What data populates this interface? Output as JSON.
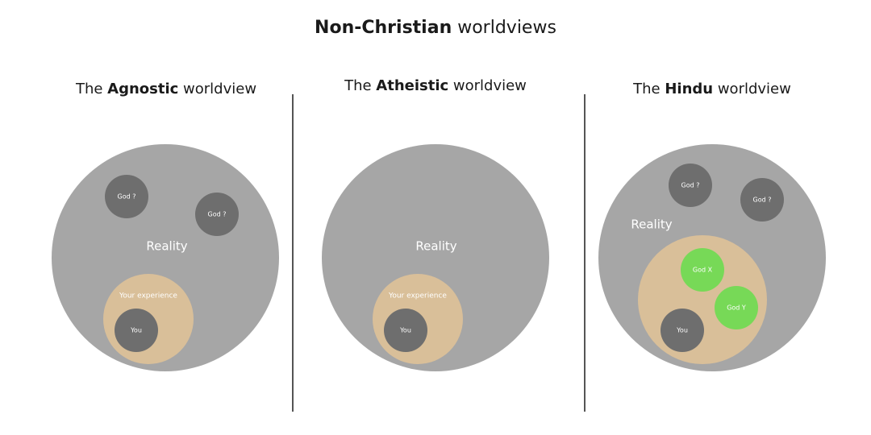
{
  "title": {
    "bold": "Non-Christian",
    "rest": " worldviews"
  },
  "panels": [
    {
      "prefix": "The ",
      "bold": "Agnostic",
      "suffix": " worldview"
    },
    {
      "prefix": "The ",
      "bold": "Atheistic",
      "suffix": " worldview"
    },
    {
      "prefix": "The ",
      "bold": "Hindu",
      "suffix": " worldview"
    }
  ],
  "labels": {
    "reality": "Reality",
    "your_experience": "Your experience",
    "you": "You",
    "god_unknown": "God ?",
    "god_x": "God X",
    "god_y": "God Y"
  },
  "colors": {
    "reality": "#a6a6a6",
    "god_unknown": "#6e6e6e",
    "experience": "#d9bf99",
    "you": "#6e6e6e",
    "god_named": "#77d957",
    "divider": "#555555"
  }
}
